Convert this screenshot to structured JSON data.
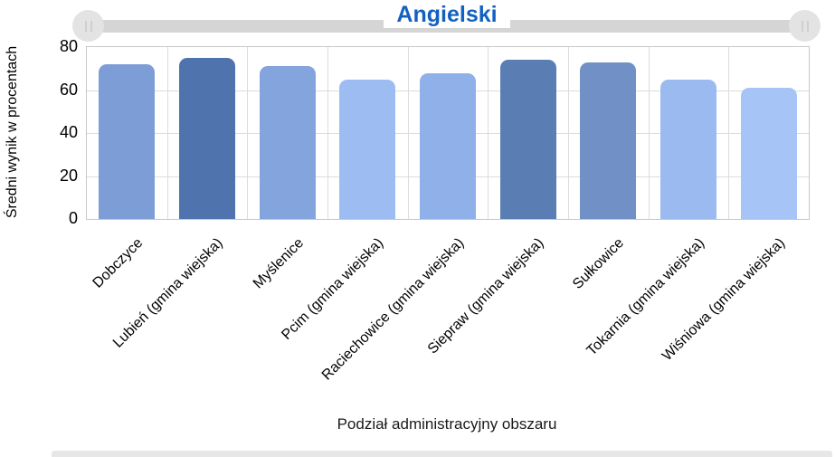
{
  "header": {
    "title": "Angielski",
    "title_color": "#1261c0"
  },
  "slider": {
    "left_handle_icon": "drag-grip",
    "right_handle_icon": "drag-grip"
  },
  "chart_data": {
    "type": "bar",
    "title": "Angielski",
    "xlabel": "Podział administracyjny obszaru",
    "ylabel": "Średni wynik w procentach",
    "categories": [
      "Dobczyce",
      "Lubień (gmina wiejska)",
      "Myślenice",
      "Pcim (gmina wiejska)",
      "Raciechowice (gmina wiejska)",
      "Siepraw (gmina wiejska)",
      "Sułkowice",
      "Tokarnia (gmina wiejska)",
      "Wiśniowa (gmina wiejska)"
    ],
    "values": [
      72,
      75,
      71,
      65,
      68,
      74,
      73,
      65,
      61
    ],
    "bar_colors": [
      "#7d9dd6",
      "#4f73ac",
      "#84a4dd",
      "#9dbcf2",
      "#8fb0e8",
      "#5a7db4",
      "#7090c6",
      "#9bbaf0",
      "#a7c4f6"
    ],
    "ylim": [
      0,
      80
    ],
    "yticks": [
      0,
      20,
      40,
      60,
      80
    ],
    "grid": true,
    "legend": "none"
  }
}
